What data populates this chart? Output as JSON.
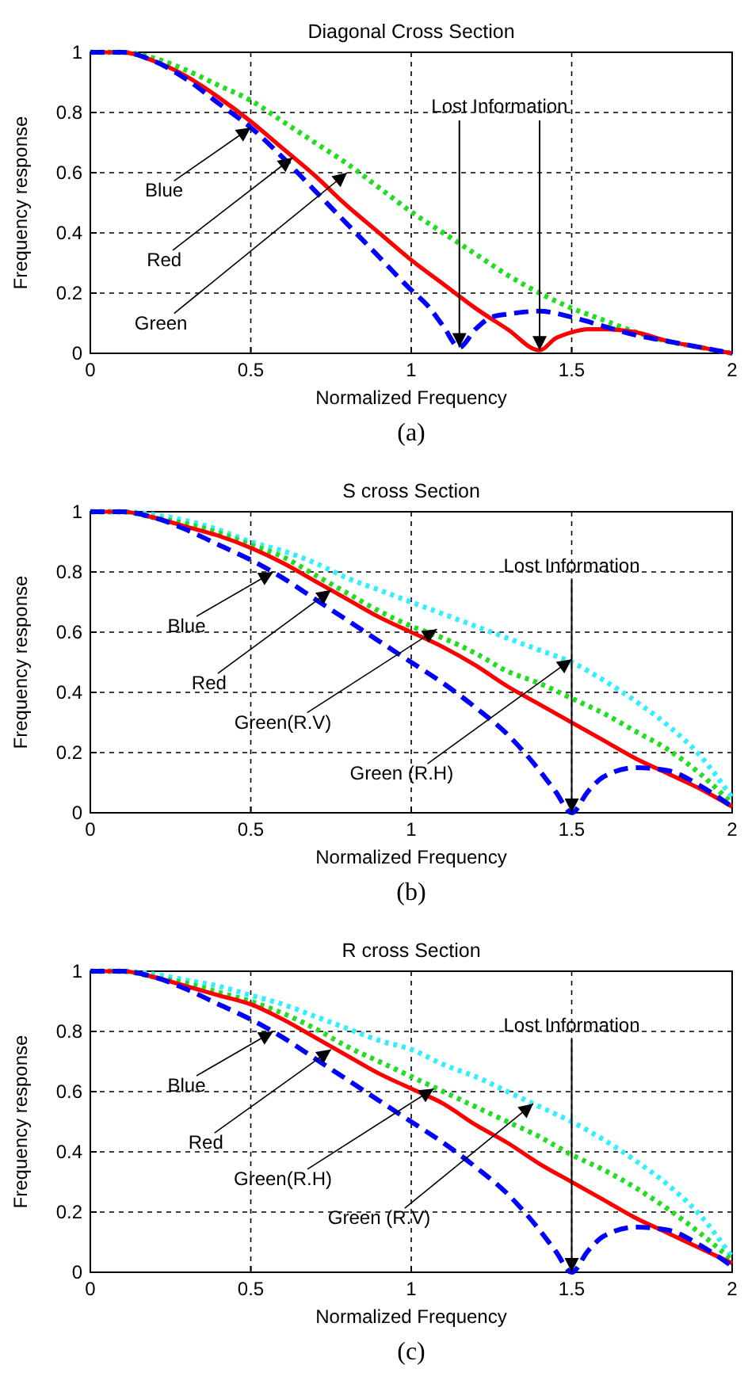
{
  "chart_data": [
    {
      "type": "line",
      "title": "Diagonal Cross Section",
      "xlabel": "Normalized Frequency",
      "ylabel": "Frequency response",
      "xlim": [
        0,
        2
      ],
      "ylim": [
        0,
        1
      ],
      "xticks": [
        0,
        0.5,
        1,
        1.5,
        2
      ],
      "yticks": [
        0,
        0.2,
        0.4,
        0.6,
        0.8,
        1
      ],
      "grid": true,
      "series": [
        {
          "color": "#22dd22",
          "line_style": "dotted",
          "x": [
            0,
            0.1,
            0.2,
            0.3,
            0.4,
            0.5,
            0.6,
            0.7,
            0.8,
            0.9,
            1.0,
            1.1,
            1.2,
            1.3,
            1.4,
            1.5,
            1.6,
            1.7,
            1.8,
            1.9,
            2.0
          ],
          "values": [
            1,
            1,
            0.98,
            0.94,
            0.89,
            0.84,
            0.77,
            0.7,
            0.63,
            0.55,
            0.47,
            0.4,
            0.33,
            0.26,
            0.2,
            0.15,
            0.11,
            0.07,
            0.04,
            0.02,
            0
          ]
        },
        {
          "color": "#ff0000",
          "line_style": "solid",
          "x": [
            0,
            0.1,
            0.2,
            0.3,
            0.4,
            0.5,
            0.6,
            0.7,
            0.8,
            0.9,
            1.0,
            1.1,
            1.2,
            1.3,
            1.4,
            1.45,
            1.5,
            1.55,
            1.6,
            1.7,
            1.8,
            1.9,
            2.0
          ],
          "values": [
            1,
            1,
            0.97,
            0.92,
            0.85,
            0.77,
            0.68,
            0.59,
            0.49,
            0.4,
            0.31,
            0.23,
            0.15,
            0.08,
            0.01,
            0.05,
            0.07,
            0.08,
            0.08,
            0.07,
            0.04,
            0.02,
            0
          ]
        },
        {
          "color": "#0000ff",
          "line_style": "dashed",
          "x": [
            0,
            0.1,
            0.2,
            0.3,
            0.4,
            0.5,
            0.6,
            0.7,
            0.8,
            0.9,
            1.0,
            1.05,
            1.1,
            1.15,
            1.2,
            1.25,
            1.3,
            1.4,
            1.5,
            1.6,
            1.7,
            1.8,
            1.9,
            2.0
          ],
          "values": [
            1,
            1,
            0.97,
            0.91,
            0.83,
            0.75,
            0.65,
            0.54,
            0.43,
            0.32,
            0.21,
            0.16,
            0.09,
            0.02,
            0.08,
            0.12,
            0.13,
            0.14,
            0.12,
            0.09,
            0.06,
            0.04,
            0.02,
            0
          ]
        }
      ],
      "annotations": [
        {
          "text": "Blue",
          "x": 0.5,
          "y": 0.75
        },
        {
          "text": "Red",
          "x": 0.63,
          "y": 0.65
        },
        {
          "text": "Green",
          "x": 0.8,
          "y": 0.6
        },
        {
          "text": "Lost Information",
          "x": 1.4,
          "y": 0.01
        },
        "(a)"
      ]
    },
    {
      "type": "line",
      "title": "S cross Section",
      "xlabel": "Normalized Frequency",
      "ylabel": "Frequency response",
      "xlim": [
        0,
        2
      ],
      "ylim": [
        0,
        1
      ],
      "xticks": [
        0,
        0.5,
        1,
        1.5,
        2
      ],
      "yticks": [
        0,
        0.2,
        0.4,
        0.6,
        0.8,
        1
      ],
      "grid": true,
      "series": [
        {
          "color": "#33eeff",
          "line_style": "dotted",
          "x": [
            0,
            0.1,
            0.2,
            0.3,
            0.4,
            0.5,
            0.6,
            0.7,
            0.8,
            0.9,
            1.0,
            1.1,
            1.2,
            1.3,
            1.4,
            1.5,
            1.6,
            1.7,
            1.8,
            1.9,
            2.0
          ],
          "values": [
            1,
            1,
            0.99,
            0.97,
            0.94,
            0.9,
            0.87,
            0.83,
            0.78,
            0.74,
            0.7,
            0.66,
            0.62,
            0.58,
            0.54,
            0.5,
            0.44,
            0.37,
            0.29,
            0.19,
            0.05
          ]
        },
        {
          "color": "#22dd22",
          "line_style": "dotted",
          "x": [
            0,
            0.1,
            0.2,
            0.3,
            0.4,
            0.5,
            0.6,
            0.7,
            0.8,
            0.9,
            1.0,
            1.1,
            1.2,
            1.3,
            1.4,
            1.5,
            1.6,
            1.7,
            1.8,
            1.9,
            2.0
          ],
          "values": [
            1,
            1,
            0.98,
            0.96,
            0.93,
            0.89,
            0.85,
            0.79,
            0.73,
            0.67,
            0.62,
            0.58,
            0.53,
            0.47,
            0.43,
            0.38,
            0.33,
            0.27,
            0.21,
            0.13,
            0.03
          ]
        },
        {
          "color": "#ff0000",
          "line_style": "solid",
          "x": [
            0,
            0.1,
            0.2,
            0.3,
            0.4,
            0.5,
            0.6,
            0.7,
            0.8,
            0.9,
            1.0,
            1.1,
            1.2,
            1.3,
            1.4,
            1.5,
            1.6,
            1.7,
            1.8,
            1.9,
            2.0
          ],
          "values": [
            1,
            1,
            0.98,
            0.95,
            0.92,
            0.88,
            0.83,
            0.77,
            0.71,
            0.65,
            0.6,
            0.55,
            0.49,
            0.42,
            0.36,
            0.3,
            0.24,
            0.18,
            0.13,
            0.08,
            0.02
          ]
        },
        {
          "color": "#0000ff",
          "line_style": "dashed",
          "x": [
            0,
            0.1,
            0.2,
            0.3,
            0.4,
            0.5,
            0.6,
            0.7,
            0.8,
            0.9,
            1.0,
            1.1,
            1.2,
            1.3,
            1.4,
            1.45,
            1.5,
            1.55,
            1.6,
            1.7,
            1.8,
            1.9,
            2.0
          ],
          "values": [
            1,
            1,
            0.98,
            0.94,
            0.89,
            0.84,
            0.78,
            0.71,
            0.64,
            0.57,
            0.5,
            0.43,
            0.35,
            0.26,
            0.14,
            0.07,
            0,
            0.07,
            0.12,
            0.15,
            0.14,
            0.09,
            0.02
          ]
        }
      ],
      "annotations": [
        {
          "text": "Blue",
          "x": 0.57,
          "y": 0.8
        },
        {
          "text": "Red",
          "x": 0.75,
          "y": 0.74
        },
        {
          "text": "Green(R.V)",
          "x": 1.08,
          "y": 0.61
        },
        {
          "text": "Green (R.H)",
          "x": 1.5,
          "y": 0.51
        },
        {
          "text": "Lost Information",
          "x": 1.5,
          "y": 0
        },
        "(b)"
      ]
    },
    {
      "type": "line",
      "title": "R cross Section",
      "xlabel": "Normalized Frequency",
      "ylabel": "Frequency response",
      "xlim": [
        0,
        2
      ],
      "ylim": [
        0,
        1
      ],
      "xticks": [
        0,
        0.5,
        1,
        1.5,
        2
      ],
      "yticks": [
        0,
        0.2,
        0.4,
        0.6,
        0.8,
        1
      ],
      "grid": true,
      "series": [
        {
          "color": "#33eeff",
          "line_style": "dotted",
          "x": [
            0,
            0.1,
            0.2,
            0.3,
            0.4,
            0.5,
            0.6,
            0.7,
            0.8,
            0.9,
            1.0,
            1.1,
            1.2,
            1.3,
            1.4,
            1.5,
            1.6,
            1.7,
            1.8,
            1.9,
            2.0
          ],
          "values": [
            1,
            1,
            0.99,
            0.97,
            0.95,
            0.92,
            0.89,
            0.85,
            0.81,
            0.77,
            0.74,
            0.69,
            0.65,
            0.6,
            0.55,
            0.5,
            0.44,
            0.37,
            0.29,
            0.19,
            0.05
          ]
        },
        {
          "color": "#22dd22",
          "line_style": "dotted",
          "x": [
            0,
            0.1,
            0.2,
            0.3,
            0.4,
            0.5,
            0.6,
            0.7,
            0.8,
            0.9,
            1.0,
            1.1,
            1.2,
            1.3,
            1.4,
            1.5,
            1.6,
            1.7,
            1.8,
            1.9,
            2.0
          ],
          "values": [
            1,
            1,
            0.98,
            0.96,
            0.93,
            0.9,
            0.86,
            0.81,
            0.75,
            0.7,
            0.65,
            0.6,
            0.55,
            0.5,
            0.45,
            0.39,
            0.34,
            0.28,
            0.21,
            0.13,
            0.04
          ]
        },
        {
          "color": "#ff0000",
          "line_style": "solid",
          "x": [
            0,
            0.1,
            0.2,
            0.3,
            0.4,
            0.5,
            0.6,
            0.7,
            0.8,
            0.9,
            1.0,
            1.1,
            1.2,
            1.3,
            1.4,
            1.5,
            1.6,
            1.7,
            1.8,
            1.9,
            2.0
          ],
          "values": [
            1,
            1,
            0.98,
            0.95,
            0.92,
            0.89,
            0.84,
            0.78,
            0.72,
            0.66,
            0.61,
            0.56,
            0.49,
            0.43,
            0.36,
            0.3,
            0.24,
            0.18,
            0.13,
            0.08,
            0.03
          ]
        },
        {
          "color": "#0000ff",
          "line_style": "dashed",
          "x": [
            0,
            0.1,
            0.2,
            0.3,
            0.4,
            0.5,
            0.6,
            0.7,
            0.8,
            0.9,
            1.0,
            1.1,
            1.2,
            1.3,
            1.4,
            1.45,
            1.5,
            1.55,
            1.6,
            1.7,
            1.8,
            1.9,
            2.0
          ],
          "values": [
            1,
            1,
            0.98,
            0.94,
            0.89,
            0.84,
            0.78,
            0.71,
            0.64,
            0.57,
            0.5,
            0.43,
            0.35,
            0.26,
            0.14,
            0.07,
            0,
            0.07,
            0.12,
            0.15,
            0.14,
            0.09,
            0.02
          ]
        }
      ],
      "annotations": [
        {
          "text": "Blue",
          "x": 0.57,
          "y": 0.8
        },
        {
          "text": "Red",
          "x": 0.75,
          "y": 0.74
        },
        {
          "text": "Green(R.H)",
          "x": 1.07,
          "y": 0.61
        },
        {
          "text": "Green (R.V)",
          "x": 1.38,
          "y": 0.56
        },
        {
          "text": "Lost Information",
          "x": 1.5,
          "y": 0
        },
        "(c)"
      ]
    }
  ]
}
